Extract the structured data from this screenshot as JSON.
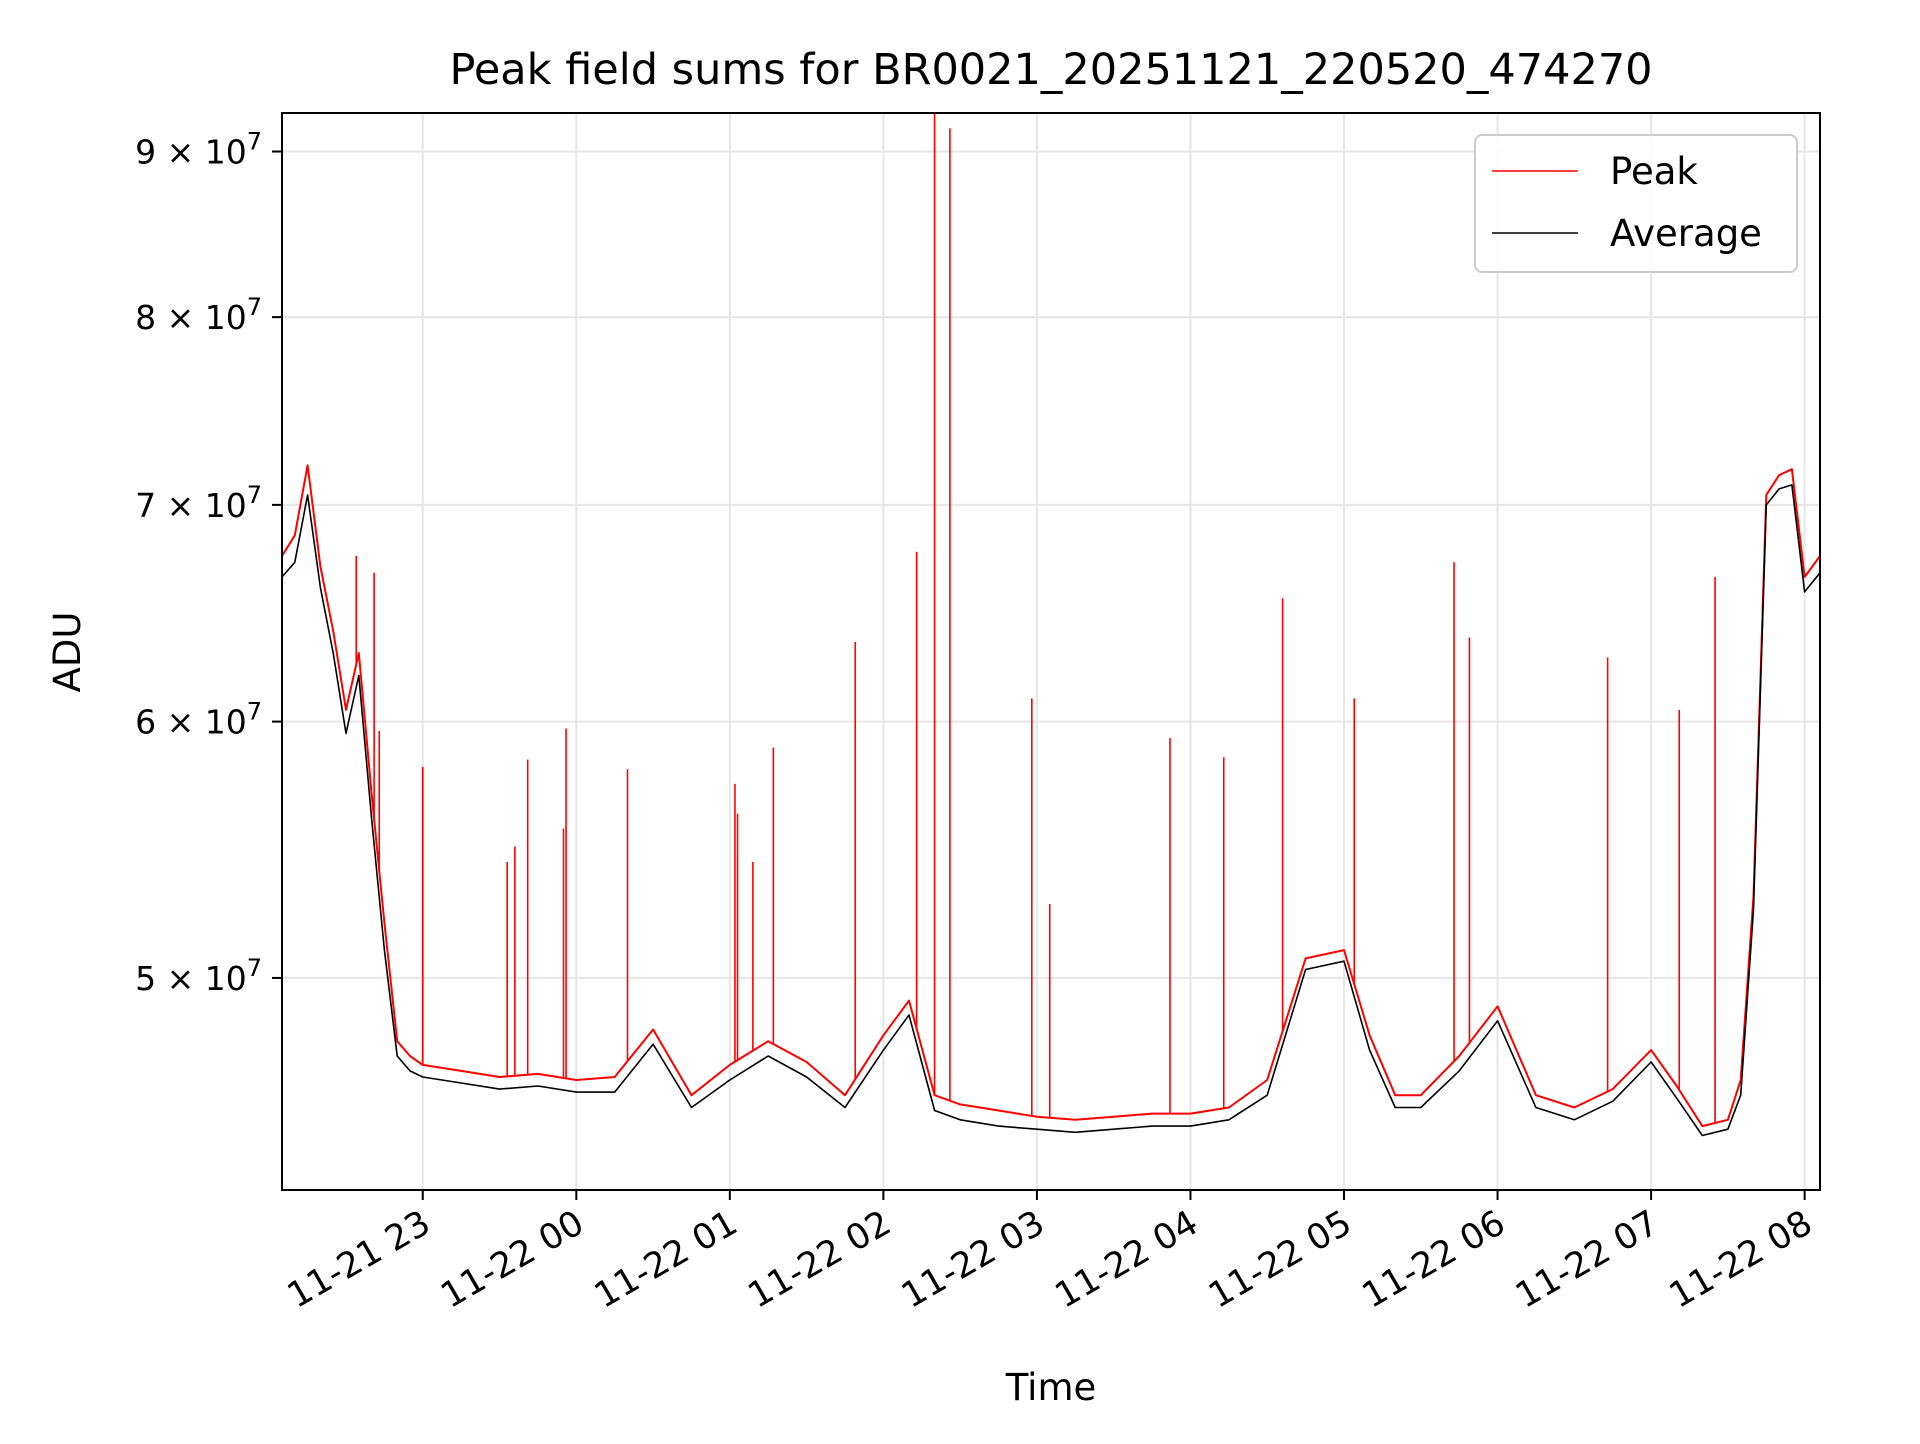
{
  "chart_data": {
    "type": "line",
    "title": "Peak field sums for BR0021_20251121_220520_474270",
    "xlabel": "Time",
    "ylabel": "ADU",
    "y_scale": "log",
    "xlim": [
      "2025-11-21 22:05",
      "2025-11-22 08:06"
    ],
    "ylim": [
      43000000,
      92500000
    ],
    "x_ticks": [
      {
        "value": "2025-11-21 23:00",
        "label": "11-21 23"
      },
      {
        "value": "2025-11-22 00:00",
        "label": "11-22 00"
      },
      {
        "value": "2025-11-22 01:00",
        "label": "11-22 01"
      },
      {
        "value": "2025-11-22 02:00",
        "label": "11-22 02"
      },
      {
        "value": "2025-11-22 03:00",
        "label": "11-22 03"
      },
      {
        "value": "2025-11-22 04:00",
        "label": "11-22 04"
      },
      {
        "value": "2025-11-22 05:00",
        "label": "11-22 05"
      },
      {
        "value": "2025-11-22 06:00",
        "label": "11-22 06"
      },
      {
        "value": "2025-11-22 07:00",
        "label": "11-22 07"
      },
      {
        "value": "2025-11-22 08:00",
        "label": "11-22 08"
      }
    ],
    "y_ticks": [
      {
        "value": 50000000,
        "mantissa": "5",
        "exponent": "7"
      },
      {
        "value": 60000000,
        "mantissa": "6",
        "exponent": "7"
      },
      {
        "value": 70000000,
        "mantissa": "7",
        "exponent": "7"
      },
      {
        "value": 80000000,
        "mantissa": "8",
        "exponent": "7"
      },
      {
        "value": 90000000,
        "mantissa": "9",
        "exponent": "7"
      }
    ],
    "grid": true,
    "legend_position": "top-right",
    "series": [
      {
        "name": "Peak",
        "color": "#ff0000",
        "x": [
          "2025-11-21 22:05",
          "2025-11-21 22:10",
          "2025-11-21 22:15",
          "2025-11-21 22:20",
          "2025-11-21 22:25",
          "2025-11-21 22:30",
          "2025-11-21 22:35",
          "2025-11-21 22:40",
          "2025-11-21 22:45",
          "2025-11-21 22:50",
          "2025-11-21 22:55",
          "2025-11-21 23:00",
          "2025-11-21 23:15",
          "2025-11-21 23:30",
          "2025-11-21 23:45",
          "2025-11-22 00:00",
          "2025-11-22 00:15",
          "2025-11-22 00:30",
          "2025-11-22 00:45",
          "2025-11-22 01:00",
          "2025-11-22 01:15",
          "2025-11-22 01:30",
          "2025-11-22 01:45",
          "2025-11-22 02:00",
          "2025-11-22 02:10",
          "2025-11-22 02:20",
          "2025-11-22 02:30",
          "2025-11-22 02:45",
          "2025-11-22 03:00",
          "2025-11-22 03:15",
          "2025-11-22 03:30",
          "2025-11-22 03:45",
          "2025-11-22 04:00",
          "2025-11-22 04:15",
          "2025-11-22 04:30",
          "2025-11-22 04:45",
          "2025-11-22 05:00",
          "2025-11-22 05:10",
          "2025-11-22 05:20",
          "2025-11-22 05:30",
          "2025-11-22 05:45",
          "2025-11-22 06:00",
          "2025-11-22 06:15",
          "2025-11-22 06:30",
          "2025-11-22 06:45",
          "2025-11-22 07:00",
          "2025-11-22 07:10",
          "2025-11-22 07:20",
          "2025-11-22 07:30",
          "2025-11-22 07:35",
          "2025-11-22 07:40",
          "2025-11-22 07:45",
          "2025-11-22 07:50",
          "2025-11-22 07:55",
          "2025-11-22 08:00",
          "2025-11-22 08:06"
        ],
        "values": [
          67500000,
          68500000,
          72000000,
          67000000,
          64000000,
          60500000,
          63000000,
          57000000,
          52000000,
          47800000,
          47300000,
          47000000,
          46800000,
          46600000,
          46700000,
          46500000,
          46600000,
          48200000,
          46000000,
          47000000,
          47800000,
          47100000,
          46000000,
          48000000,
          49200000,
          46000000,
          45700000,
          45500000,
          45300000,
          45200000,
          45300000,
          45400000,
          45400000,
          45600000,
          46500000,
          50700000,
          51000000,
          48000000,
          46000000,
          46000000,
          47300000,
          49000000,
          46000000,
          45600000,
          46200000,
          47500000,
          46300000,
          45000000,
          45200000,
          46500000,
          53000000,
          70500000,
          71500000,
          71800000,
          66500000,
          67500000
        ],
        "spikes": [
          {
            "x": "2025-11-21 22:34",
            "y": 67500000
          },
          {
            "x": "2025-11-21 22:41",
            "y": 66700000
          },
          {
            "x": "2025-11-21 22:43",
            "y": 59600000
          },
          {
            "x": "2025-11-21 23:00",
            "y": 58100000
          },
          {
            "x": "2025-11-21 23:33",
            "y": 54300000
          },
          {
            "x": "2025-11-21 23:36",
            "y": 54900000
          },
          {
            "x": "2025-11-21 23:41",
            "y": 58400000
          },
          {
            "x": "2025-11-21 23:55",
            "y": 55600000
          },
          {
            "x": "2025-11-21 23:56",
            "y": 59700000
          },
          {
            "x": "2025-11-22 00:20",
            "y": 58000000
          },
          {
            "x": "2025-11-22 01:02",
            "y": 57400000
          },
          {
            "x": "2025-11-22 01:03",
            "y": 56200000
          },
          {
            "x": "2025-11-22 01:09",
            "y": 54300000
          },
          {
            "x": "2025-11-22 01:17",
            "y": 58900000
          },
          {
            "x": "2025-11-22 01:49",
            "y": 63500000
          },
          {
            "x": "2025-11-22 02:13",
            "y": 67700000
          },
          {
            "x": "2025-11-22 02:20",
            "y": 92500000
          },
          {
            "x": "2025-11-22 02:26",
            "y": 91500000
          },
          {
            "x": "2025-11-22 02:58",
            "y": 61000000
          },
          {
            "x": "2025-11-22 03:05",
            "y": 52700000
          },
          {
            "x": "2025-11-22 03:52",
            "y": 59300000
          },
          {
            "x": "2025-11-22 04:13",
            "y": 58500000
          },
          {
            "x": "2025-11-22 04:36",
            "y": 65500000
          },
          {
            "x": "2025-11-22 05:04",
            "y": 61000000
          },
          {
            "x": "2025-11-22 05:43",
            "y": 67200000
          },
          {
            "x": "2025-11-22 05:49",
            "y": 63700000
          },
          {
            "x": "2025-11-22 06:43",
            "y": 62800000
          },
          {
            "x": "2025-11-22 07:11",
            "y": 60500000
          },
          {
            "x": "2025-11-22 07:25",
            "y": 66500000
          }
        ]
      },
      {
        "name": "Average",
        "color": "#000000",
        "x": [
          "2025-11-21 22:05",
          "2025-11-21 22:10",
          "2025-11-21 22:15",
          "2025-11-21 22:20",
          "2025-11-21 22:25",
          "2025-11-21 22:30",
          "2025-11-21 22:35",
          "2025-11-21 22:40",
          "2025-11-21 22:45",
          "2025-11-21 22:50",
          "2025-11-21 22:55",
          "2025-11-21 23:00",
          "2025-11-21 23:15",
          "2025-11-21 23:30",
          "2025-11-21 23:45",
          "2025-11-22 00:00",
          "2025-11-22 00:15",
          "2025-11-22 00:30",
          "2025-11-22 00:45",
          "2025-11-22 01:00",
          "2025-11-22 01:15",
          "2025-11-22 01:30",
          "2025-11-22 01:45",
          "2025-11-22 02:00",
          "2025-11-22 02:10",
          "2025-11-22 02:20",
          "2025-11-22 02:30",
          "2025-11-22 02:45",
          "2025-11-22 03:00",
          "2025-11-22 03:15",
          "2025-11-22 03:30",
          "2025-11-22 03:45",
          "2025-11-22 04:00",
          "2025-11-22 04:15",
          "2025-11-22 04:30",
          "2025-11-22 04:45",
          "2025-11-22 05:00",
          "2025-11-22 05:10",
          "2025-11-22 05:20",
          "2025-11-22 05:30",
          "2025-11-22 05:45",
          "2025-11-22 06:00",
          "2025-11-22 06:15",
          "2025-11-22 06:30",
          "2025-11-22 06:45",
          "2025-11-22 07:00",
          "2025-11-22 07:10",
          "2025-11-22 07:20",
          "2025-11-22 07:30",
          "2025-11-22 07:35",
          "2025-11-22 07:40",
          "2025-11-22 07:45",
          "2025-11-22 07:50",
          "2025-11-22 07:55",
          "2025-11-22 08:00",
          "2025-11-22 08:06"
        ],
        "values": [
          66500000,
          67200000,
          70500000,
          66000000,
          63000000,
          59500000,
          62000000,
          56000000,
          51000000,
          47300000,
          46800000,
          46600000,
          46400000,
          46200000,
          46300000,
          46100000,
          46100000,
          47700000,
          45600000,
          46500000,
          47300000,
          46600000,
          45600000,
          47500000,
          48700000,
          45500000,
          45200000,
          45000000,
          44900000,
          44800000,
          44900000,
          45000000,
          45000000,
          45200000,
          46000000,
          50300000,
          50600000,
          47500000,
          45600000,
          45600000,
          46800000,
          48500000,
          45600000,
          45200000,
          45800000,
          47100000,
          45900000,
          44700000,
          44900000,
          46000000,
          52500000,
          70000000,
          70800000,
          71000000,
          65800000,
          66700000
        ]
      }
    ]
  }
}
